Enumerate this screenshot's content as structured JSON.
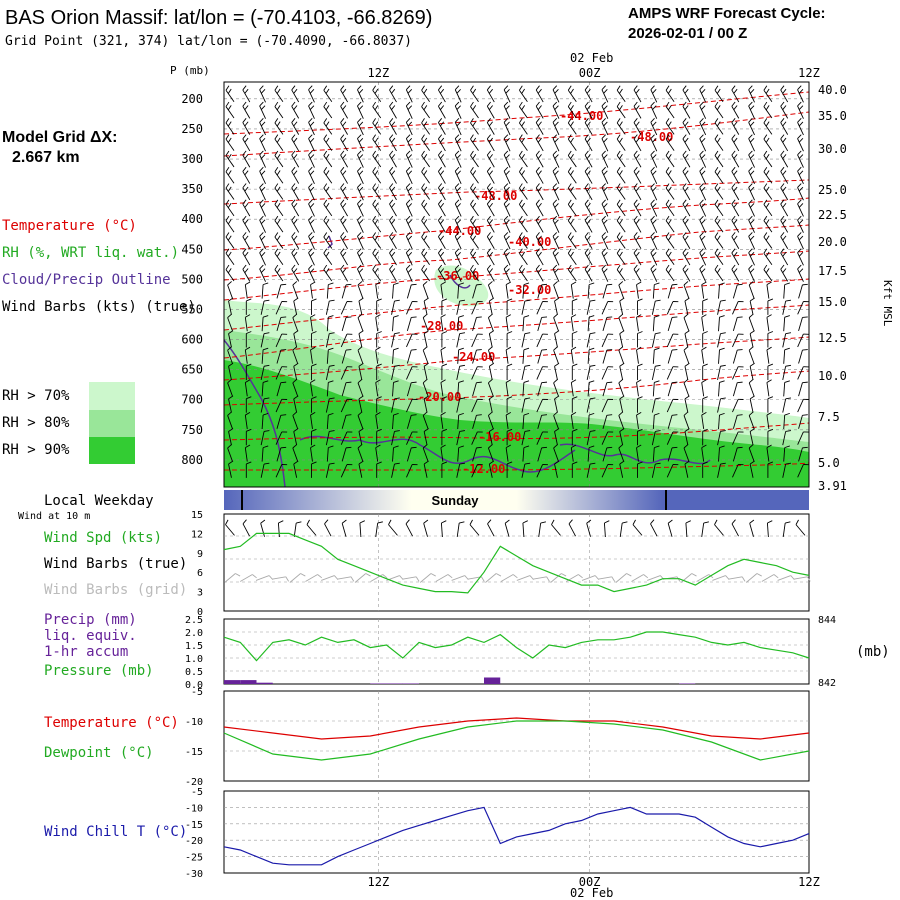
{
  "header": {
    "title": "BAS Orion Massif:  lat/lon = (-70.4103, -66.8269)",
    "subtitle": "Grid Point (321, 374) lat/lon = (-70.4090, -66.8037)",
    "forecast_label": "AMPS WRF Forecast Cycle:",
    "forecast_cycle": "2026-02-01 / 00  Z"
  },
  "sidebar": {
    "model_grid_label": "Model Grid ΔX:",
    "model_grid_value": "2.667 km",
    "legend_temperature": "Temperature (°C)",
    "legend_rh": "RH (%, WRT liq. wat.)",
    "legend_cloud": "Cloud/Precip Outline",
    "legend_wind": "Wind Barbs (kts) (true)",
    "rh70": "RH > 70%",
    "rh80": "RH > 80%",
    "rh90": "RH > 90%",
    "local_weekday": "Local Weekday",
    "wind_at_10m": "Wind at 10 m"
  },
  "colors": {
    "temperature": "#dd0000",
    "rh70": "#ccf7cc",
    "rh80": "#99e699",
    "rh90": "#33cc33",
    "cloud": "#553399",
    "precip": "#662299",
    "dewpoint": "#22bb22",
    "windchill": "#1a1aaa",
    "wind_true": "#000000",
    "wind_grid": "#aaaaaa",
    "day_bar_dark": "#5566bb",
    "day_bar_light": "#fffff0"
  },
  "chart_data": [
    {
      "type": "heatmap",
      "name": "cross_section",
      "p_axis_label": "P (mb)",
      "p_ticks": [
        200,
        250,
        300,
        350,
        400,
        450,
        500,
        550,
        600,
        650,
        700,
        750,
        800
      ],
      "p_range": [
        172,
        845
      ],
      "height_axis_label": "Kft MSL",
      "height_ticks": [
        "40.0",
        "35.0",
        "30.0",
        "25.0",
        "22.5",
        "20.0",
        "17.5",
        "15.0",
        "12.5",
        "10.0",
        "7.5",
        "5.0",
        "3.91"
      ],
      "time_ticks": [
        "12Z",
        "00Z",
        "12Z"
      ],
      "date_label": "02 Feb",
      "isotherm_labels": [
        "-44.00",
        "-48.00",
        "-48.00",
        "-44.00",
        "-40.00",
        "-36.00",
        "-32.00",
        "-28.00",
        "-24.00",
        "-20.00",
        "-16.00",
        "-12.00"
      ]
    },
    {
      "type": "line",
      "name": "wind_panel",
      "x_hours": [
        0,
        1,
        2,
        3,
        4,
        5,
        6,
        7,
        8,
        9,
        10,
        11,
        12,
        13,
        14,
        15,
        16,
        17,
        18,
        19,
        20,
        21,
        22,
        23,
        24,
        25,
        26,
        27,
        28,
        29,
        30,
        31,
        32,
        33,
        34,
        35,
        36
      ],
      "series": [
        {
          "name": "Wind Spd (kts)",
          "values": [
            9.5,
            10,
            12,
            12,
            12,
            11,
            10,
            8,
            7,
            6,
            5,
            4,
            3.5,
            3,
            3,
            2.8,
            6,
            10,
            8.5,
            7,
            6,
            5,
            4,
            4,
            3,
            3.5,
            4,
            5,
            5,
            4,
            5.5,
            7,
            8,
            7.5,
            7,
            6,
            5.5
          ]
        }
      ],
      "ylim": [
        0,
        15
      ],
      "yticks": [
        0,
        3,
        6,
        9,
        12,
        15
      ],
      "labels": {
        "speed": "Wind Spd (kts)",
        "barbs_true": "Wind Barbs (true)",
        "barbs_grid": "Wind Barbs (grid)"
      },
      "day_label": "Sunday"
    },
    {
      "type": "bar",
      "name": "precip_pressure_panel",
      "x_hours": [
        0,
        1,
        2,
        3,
        4,
        5,
        6,
        7,
        8,
        9,
        10,
        11,
        12,
        13,
        14,
        15,
        16,
        17,
        18,
        19,
        20,
        21,
        22,
        23,
        24,
        25,
        26,
        27,
        28,
        29,
        30,
        31,
        32,
        33,
        34,
        35,
        36
      ],
      "series": [
        {
          "name": "Precip (mm)",
          "values": [
            0.15,
            0.15,
            0.05,
            0,
            0,
            0,
            0,
            0,
            0,
            0.02,
            0.02,
            0.02,
            0,
            0,
            0,
            0,
            0.25,
            0,
            0,
            0,
            0,
            0,
            0,
            0,
            0,
            0,
            0,
            0,
            0.02,
            0,
            0,
            0,
            0,
            0,
            0,
            0,
            0
          ]
        },
        {
          "name": "Pressure (mb)",
          "values": [
            1.8,
            1.6,
            0.9,
            1.6,
            1.7,
            1.5,
            1.8,
            1.6,
            1.7,
            1.4,
            1.5,
            1.0,
            1.6,
            1.4,
            1.5,
            1.8,
            1.6,
            1.9,
            1.4,
            1.0,
            1.5,
            1.4,
            1.6,
            1.7,
            1.7,
            1.8,
            2.0,
            2.0,
            1.9,
            1.8,
            1.6,
            1.5,
            1.6,
            1.4,
            1.3,
            1.2,
            1.0
          ]
        }
      ],
      "ylim": [
        0,
        2.5
      ],
      "yticks": [
        "0.0",
        "0.5",
        "1.0",
        "1.5",
        "2.0",
        "2.5"
      ],
      "right_ticks": [
        "844",
        "842"
      ],
      "right_unit": "(mb)",
      "labels": {
        "precip": "Precip (mm)",
        "liq": "liq. equiv.",
        "accum": "1-hr accum",
        "pressure": "Pressure (mb)"
      }
    },
    {
      "type": "line",
      "name": "temperature_panel",
      "x_hours": [
        0,
        3,
        6,
        9,
        12,
        15,
        18,
        21,
        24,
        27,
        30,
        33,
        36
      ],
      "series": [
        {
          "name": "Temperature (°C)",
          "values": [
            -11,
            -12,
            -13,
            -12.5,
            -11,
            -10,
            -9.5,
            -10,
            -10,
            -11,
            -12.5,
            -13,
            -12
          ]
        },
        {
          "name": "Dewpoint (°C)",
          "values": [
            -12,
            -15.5,
            -16.5,
            -15.5,
            -13,
            -11,
            -10,
            -10,
            -10.5,
            -11.5,
            -13.5,
            -16.5,
            -15
          ]
        }
      ],
      "ylim": [
        -20,
        -5
      ],
      "yticks": [
        "-5",
        "-10",
        "-15",
        "-20"
      ],
      "labels": {
        "temperature": "Temperature (°C)",
        "dewpoint": "Dewpoint (°C)"
      }
    },
    {
      "type": "line",
      "name": "windchill_panel",
      "x_hours": [
        0,
        1,
        2,
        3,
        4,
        5,
        6,
        7,
        8,
        9,
        10,
        11,
        12,
        13,
        14,
        15,
        16,
        17,
        18,
        19,
        20,
        21,
        22,
        23,
        24,
        25,
        26,
        27,
        28,
        29,
        30,
        31,
        32,
        33,
        34,
        35,
        36
      ],
      "series": [
        {
          "name": "Wind Chill T (°C)",
          "values": [
            -22,
            -23,
            -25,
            -27,
            -27.5,
            -27.5,
            -27.5,
            -25,
            -23,
            -21,
            -19,
            -17,
            -15.5,
            -14,
            -12.5,
            -11,
            -10,
            -21,
            -19,
            -18,
            -17,
            -15,
            -14,
            -12,
            -11,
            -10,
            -12,
            -12,
            -12,
            -13,
            -16,
            -19,
            -21,
            -22,
            -21,
            -20,
            -18
          ]
        }
      ],
      "ylim": [
        -30,
        -5
      ],
      "yticks": [
        "-5",
        "-10",
        "-15",
        "-20",
        "-25",
        "-30"
      ],
      "xticks": [
        "12Z",
        "00Z",
        "12Z"
      ],
      "date_label": "02 Feb",
      "labels": {
        "windchill": "Wind Chill T (°C)"
      }
    }
  ]
}
